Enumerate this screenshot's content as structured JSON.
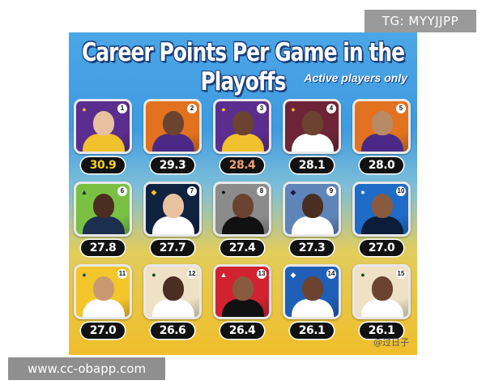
{
  "overlays": {
    "tg_label": "TG: MYYJJPP",
    "url_label": "www.cc-obapp.com"
  },
  "poster": {
    "title": "Career Points Per Game in the Playoffs",
    "subtitle": "Active players only",
    "watermark": "@过日子",
    "players": [
      {
        "rank": "1",
        "points": "30.9",
        "bg": "#5b2d8e",
        "jersey": "#f2c12e",
        "skin": "#e8c2a0",
        "points_color": "#f5d21c",
        "logo": "●",
        "logo_color": "#f2c12e"
      },
      {
        "rank": "2",
        "points": "29.3",
        "bg": "#e2721f",
        "jersey": "#4b2a87",
        "skin": "#6b4330",
        "points_color": "#ffffff",
        "logo": "●",
        "logo_color": "#e2721f"
      },
      {
        "rank": "3",
        "points": "28.4",
        "bg": "#5b2d8e",
        "jersey": "#f2c12e",
        "skin": "#6b4330",
        "points_color": "#f0a070",
        "logo": "●",
        "logo_color": "#f2c12e"
      },
      {
        "rank": "4",
        "points": "28.1",
        "bg": "#6e2437",
        "jersey": "#ffffff",
        "skin": "#6b4330",
        "points_color": "#ffffff",
        "logo": "●",
        "logo_color": "#f3b43a"
      },
      {
        "rank": "5",
        "points": "28.0",
        "bg": "#e2721f",
        "jersey": "#4b2a87",
        "skin": "#b98a66",
        "points_color": "#ffffff",
        "logo": "●",
        "logo_color": "#e2721f"
      },
      {
        "rank": "6",
        "points": "27.8",
        "bg": "#7ac143",
        "jersey": "#1b2f4f",
        "skin": "#4a2e22",
        "points_color": "#ffffff",
        "logo": "▲",
        "logo_color": "#1b2f4f"
      },
      {
        "rank": "7",
        "points": "27.7",
        "bg": "#0f2240",
        "jersey": "#ffffff",
        "skin": "#e8c2a0",
        "points_color": "#ffffff",
        "logo": "◆",
        "logo_color": "#fec524"
      },
      {
        "rank": "8",
        "points": "27.4",
        "bg": "#8b8b8b",
        "jersey": "#111111",
        "skin": "#6b4330",
        "points_color": "#ffffff",
        "logo": "●",
        "logo_color": "#111111"
      },
      {
        "rank": "9",
        "points": "27.3",
        "bg": "#5f84b8",
        "jersey": "#ffffff",
        "skin": "#4a2e22",
        "points_color": "#ffffff",
        "logo": "◆",
        "logo_color": "#12173f"
      },
      {
        "rank": "10",
        "points": "27.0",
        "bg": "#1e6cc7",
        "jersey": "#0b1d3a",
        "skin": "#8a5a3e",
        "points_color": "#ffffff",
        "logo": "●",
        "logo_color": "#ffffff"
      },
      {
        "rank": "11",
        "points": "27.0",
        "bg": "#f3c62b",
        "jersey": "#ffffff",
        "skin": "#c99a72",
        "points_color": "#ffffff",
        "logo": "●",
        "logo_color": "#1d428a"
      },
      {
        "rank": "12",
        "points": "26.6",
        "bg": "#eee1c6",
        "jersey": "#ffffff",
        "skin": "#4a2e22",
        "points_color": "#ffffff",
        "logo": "●",
        "logo_color": "#00471b"
      },
      {
        "rank": "13",
        "points": "26.4",
        "bg": "#d12230",
        "jersey": "#111111",
        "skin": "#8a5a3e",
        "points_color": "#ffffff",
        "logo": "▲",
        "logo_color": "#ffffff"
      },
      {
        "rank": "14",
        "points": "26.1",
        "bg": "#1f5fb7",
        "jersey": "#ffffff",
        "skin": "#6b4330",
        "points_color": "#ffffff",
        "logo": "◆",
        "logo_color": "#ffffff"
      },
      {
        "rank": "15",
        "points": "26.1",
        "bg": "#eee1c6",
        "jersey": "#ffffff",
        "skin": "#6b4330",
        "points_color": "#ffffff",
        "logo": "●",
        "logo_color": "#00471b"
      }
    ]
  }
}
